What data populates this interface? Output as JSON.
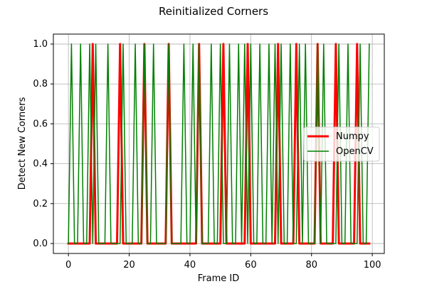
{
  "chart_data": {
    "type": "line",
    "title": "Reinitialized Corners",
    "xlabel": "Frame ID",
    "ylabel": "Detect New Corners",
    "xlim": [
      -4.95,
      103.95
    ],
    "ylim": [
      -0.05,
      1.05
    ],
    "xticks": [
      0,
      20,
      40,
      60,
      80,
      100
    ],
    "yticks": [
      0.0,
      0.2,
      0.4,
      0.6,
      0.8,
      1.0
    ],
    "xtick_labels": [
      "0",
      "20",
      "40",
      "60",
      "80",
      "100"
    ],
    "ytick_labels": [
      "0.0",
      "0.2",
      "0.4",
      "0.6",
      "0.8",
      "1.0"
    ],
    "grid": true,
    "legend": {
      "position": "center-right"
    },
    "x_start": 0,
    "x_end": 99,
    "series": [
      {
        "name": "Numpy",
        "color": "#ff0000",
        "line_width": 3,
        "ones_at_x": [
          8,
          17,
          25,
          33,
          43,
          51,
          59,
          69,
          75,
          82,
          88,
          95
        ]
      },
      {
        "name": "OpenCV",
        "color": "#008000",
        "line_width": 1.5,
        "ones_at_x": [
          1,
          4,
          7,
          9,
          13,
          18,
          22,
          25,
          28,
          33,
          38,
          41,
          43,
          47,
          50,
          53,
          56,
          58,
          60,
          63,
          66,
          68,
          70,
          73,
          76,
          78,
          82,
          84,
          89,
          92,
          96,
          99
        ]
      }
    ]
  }
}
